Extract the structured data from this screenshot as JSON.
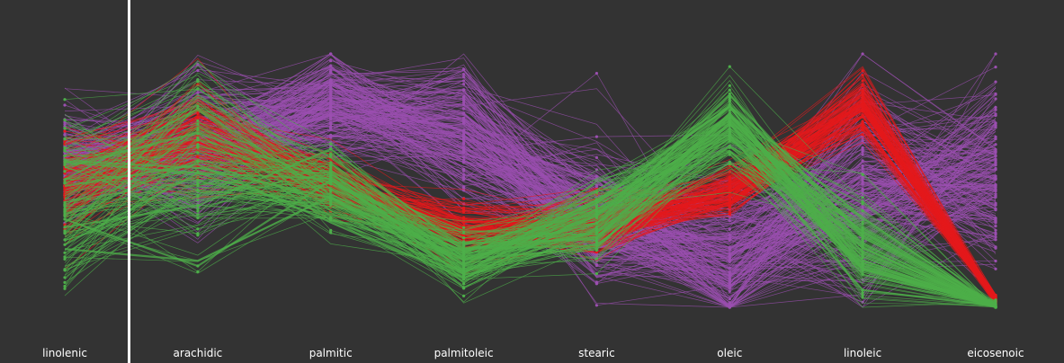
{
  "colors": {
    "background": "#333333",
    "cursor": "#ffffff",
    "class_a": "#9b4fb0",
    "class_b": "#e41a1c",
    "class_c": "#4daf4a"
  },
  "chart_data": {
    "type": "parallel_coordinates",
    "title": "",
    "dimensions": [
      {
        "name": "linolenic",
        "range": [
          0,
          1
        ]
      },
      {
        "name": "arachidic",
        "range": [
          0,
          1
        ]
      },
      {
        "name": "palmitic",
        "range": [
          0,
          1
        ]
      },
      {
        "name": "palmitoleic",
        "range": [
          0,
          1
        ]
      },
      {
        "name": "stearic",
        "range": [
          0,
          1
        ]
      },
      {
        "name": "oleic",
        "range": [
          0,
          1
        ]
      },
      {
        "name": "linoleic",
        "range": [
          0,
          1
        ]
      },
      {
        "name": "eicosenoic",
        "range": [
          0,
          1
        ]
      }
    ],
    "grid": false,
    "legend": "none",
    "selection_cursor_axis": "arachidic",
    "series": [
      {
        "color": "#9b4fb0",
        "line_count": 220,
        "profile": {
          "means": [
            0.55,
            0.62,
            0.8,
            0.7,
            0.35,
            0.2,
            0.45,
            0.5
          ],
          "spreads": [
            0.1,
            0.14,
            0.1,
            0.14,
            0.14,
            0.18,
            0.22,
            0.18
          ]
        }
      },
      {
        "color": "#e41a1c",
        "line_count": 140,
        "profile": {
          "means": [
            0.48,
            0.68,
            0.5,
            0.3,
            0.33,
            0.45,
            0.8,
            0.03
          ],
          "spreads": [
            0.1,
            0.1,
            0.06,
            0.06,
            0.06,
            0.05,
            0.06,
            0.01
          ]
        }
      },
      {
        "color": "#4daf4a",
        "line_count": 150,
        "profile": {
          "means": [
            0.4,
            0.6,
            0.45,
            0.18,
            0.35,
            0.72,
            0.25,
            0.0
          ],
          "spreads": [
            0.18,
            0.2,
            0.08,
            0.06,
            0.08,
            0.08,
            0.1,
            0.01
          ]
        }
      }
    ]
  }
}
